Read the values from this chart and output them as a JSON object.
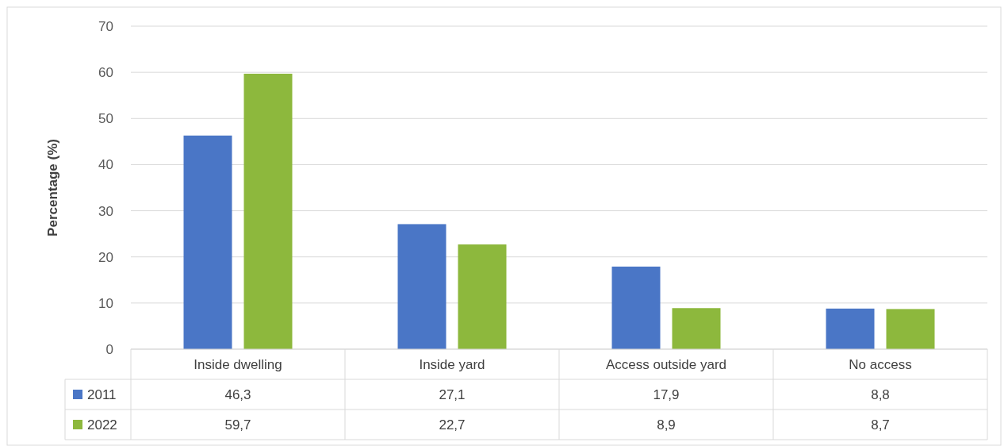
{
  "chart_data": {
    "type": "bar",
    "ylabel": "Percentage (%)",
    "categories": [
      "Inside dwelling",
      "Inside yard",
      "Access outside yard",
      "No access"
    ],
    "series": [
      {
        "name": "2011",
        "color": "#4a76c6",
        "values": [
          46.3,
          27.1,
          17.9,
          8.8
        ],
        "value_labels": [
          "46,3",
          "27,1",
          "17,9",
          "8,8"
        ]
      },
      {
        "name": "2022",
        "color": "#8db83d",
        "values": [
          59.7,
          22.7,
          8.9,
          8.7
        ],
        "value_labels": [
          "59,7",
          "22,7",
          "8,9",
          "8,7"
        ]
      }
    ],
    "ylim": [
      0,
      70
    ],
    "yticks": [
      0,
      10,
      20,
      30,
      40,
      50,
      60,
      70
    ],
    "grid": "y",
    "legend": "bottom"
  }
}
